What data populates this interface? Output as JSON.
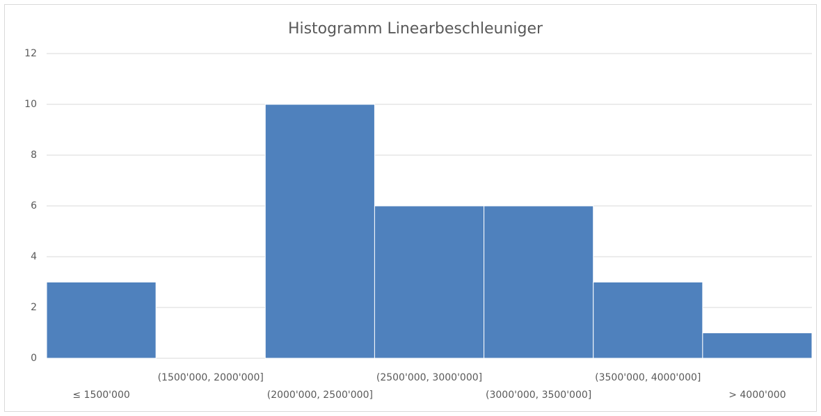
{
  "chart_data": {
    "type": "bar",
    "title": "Histogramm Linearbeschleuniger",
    "categories": [
      "≤ 1500'000",
      "(1500'000, 2000'000]",
      "(2000'000, 2500'000]",
      "(2500'000, 3000'000]",
      "(3000'000, 3500'000]",
      "(3500'000, 4000'000]",
      "> 4000'000"
    ],
    "values": [
      3,
      0,
      10,
      6,
      6,
      3,
      1
    ],
    "color": "#4f81bd",
    "ylim": [
      0,
      12
    ],
    "yticks": [
      0,
      2,
      4,
      6,
      8,
      10,
      12
    ],
    "grid": true
  }
}
